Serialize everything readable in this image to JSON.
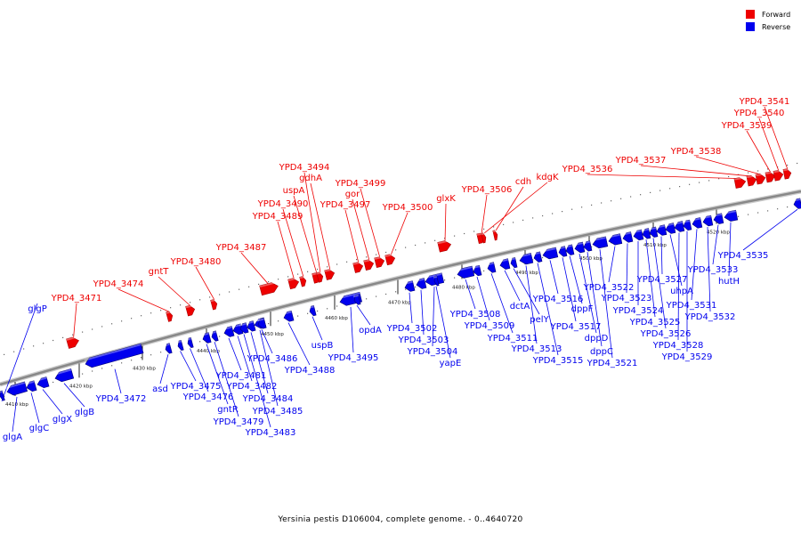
{
  "legend": {
    "forward": {
      "label": "Forward",
      "color": "#ee0000"
    },
    "reverse": {
      "label": "Reverse",
      "color": "#0000ee"
    }
  },
  "caption": "Yersinia pestis D106004, complete genome. - 0..4640720",
  "backbone_color": "#888888",
  "ticks": [
    "4410 kbp",
    "4420 kbp",
    "4430 kbp",
    "4440 kbp",
    "4450 kbp",
    "4460 kbp",
    "4470 kbp",
    "4480 kbp",
    "4490 kbp",
    "4500 kbp",
    "4510 kbp",
    "4520 kbp"
  ],
  "forward_labels": [
    "YPD4_3471",
    "YPD4_3474",
    "gntT",
    "YPD4_3480",
    "YPD4_3487",
    "YPD4_3489",
    "YPD4_3490",
    "uspA",
    "gdhA",
    "YPD4_3494",
    "YPD4_3497",
    "gor",
    "YPD4_3499",
    "YPD4_3500",
    "glxK",
    "YPD4_3506",
    "cdh",
    "kdgK",
    "YPD4_3536",
    "YPD4_3537",
    "YPD4_3538",
    "YPD4_3539",
    "YPD4_3540",
    "YPD4_3541"
  ],
  "reverse_labels": [
    "glgP",
    "glgA",
    "glgC",
    "glgX",
    "glgB",
    "YPD4_3472",
    "asd",
    "YPD4_3475",
    "YPD4_3476",
    "gntR",
    "YPD4_3479",
    "YPD4_3481",
    "YPD4_3482",
    "YPD4_3483",
    "YPD4_3484",
    "YPD4_3485",
    "YPD4_3486",
    "YPD4_3488",
    "uspB",
    "YPD4_3495",
    "opdA",
    "YPD4_3502",
    "YPD4_3503",
    "YPD4_3504",
    "yapE",
    "YPD4_3508",
    "YPD4_3509",
    "YPD4_3511",
    "dctA",
    "pelY",
    "YPD4_3513",
    "YPD4_3515",
    "YPD4_3516",
    "YPD4_3517",
    "dppF",
    "dppD",
    "dppC",
    "YPD4_3521",
    "YPD4_3522",
    "YPD4_3523",
    "YPD4_3524",
    "YPD4_3525",
    "YPD4_3526",
    "YPD4_3527",
    "uhpA",
    "YPD4_3528",
    "YPD4_3529",
    "YPD4_3531",
    "YPD4_3532",
    "YPD4_3533",
    "hutH",
    "YPD4_3535"
  ]
}
